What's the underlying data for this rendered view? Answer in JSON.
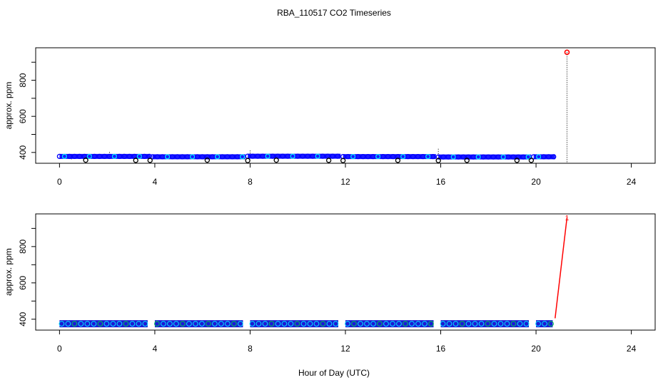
{
  "title": "RBA_110517  CO2 Timeseries",
  "xlabel": "Hour of Day (UTC)",
  "colors": {
    "main": "#0000ff",
    "alt": "#00e5ff",
    "green": "#00c853",
    "marker": "#000000",
    "outlier": "#ff0000",
    "outline": "#000000"
  },
  "chart_data": [
    {
      "type": "scatter",
      "ylabel": "approx. ppm",
      "xlim": [
        -1.0,
        25.0
      ],
      "ylim": [
        340,
        980
      ],
      "xticks": [
        0,
        4,
        8,
        12,
        16,
        20,
        24
      ],
      "yticks": [
        400,
        600,
        800
      ],
      "yticks_minor": [
        500,
        700,
        900
      ],
      "segments": [
        {
          "x_start": 0.0,
          "x_end": 3.8,
          "y": 378
        },
        {
          "x_start": 3.9,
          "x_end": 7.8,
          "y": 376
        },
        {
          "x_start": 7.9,
          "x_end": 11.8,
          "y": 379
        },
        {
          "x_start": 11.9,
          "x_end": 15.8,
          "y": 377
        },
        {
          "x_start": 15.9,
          "x_end": 19.8,
          "y": 375
        },
        {
          "x_start": 19.9,
          "x_end": 20.8,
          "y": 376
        }
      ],
      "low_markers": [
        {
          "x": 1.1,
          "y": 357
        },
        {
          "x": 3.2,
          "y": 356
        },
        {
          "x": 3.8,
          "y": 356
        },
        {
          "x": 6.2,
          "y": 357
        },
        {
          "x": 7.9,
          "y": 355
        },
        {
          "x": 9.1,
          "y": 357
        },
        {
          "x": 11.3,
          "y": 356
        },
        {
          "x": 11.9,
          "y": 355
        },
        {
          "x": 14.2,
          "y": 356
        },
        {
          "x": 15.9,
          "y": 355
        },
        {
          "x": 17.1,
          "y": 356
        },
        {
          "x": 19.2,
          "y": 356
        },
        {
          "x": 19.8,
          "y": 356
        }
      ],
      "vertical_spikes": [
        {
          "x": 0.5,
          "y_low": 360,
          "y_high": 390
        },
        {
          "x": 2.1,
          "y_low": 375,
          "y_high": 402
        },
        {
          "x": 2.7,
          "y_low": 362,
          "y_high": 392
        },
        {
          "x": 8.0,
          "y_low": 362,
          "y_high": 410
        },
        {
          "x": 15.9,
          "y_low": 362,
          "y_high": 420
        },
        {
          "x": 21.3,
          "y_low": 345,
          "y_high": 955
        }
      ],
      "outlier": {
        "x": 21.3,
        "y": 955
      }
    },
    {
      "type": "scatter",
      "ylabel": "approx. ppm",
      "xlim": [
        -1.0,
        25.0
      ],
      "ylim": [
        340,
        980
      ],
      "xticks": [
        0,
        4,
        8,
        12,
        16,
        20,
        24
      ],
      "yticks": [
        400,
        600,
        800
      ],
      "yticks_minor": [
        500,
        700,
        900
      ],
      "segments": [
        {
          "x_start": 0.0,
          "x_end": 3.7,
          "y": 375
        },
        {
          "x_start": 4.0,
          "x_end": 7.7,
          "y": 375
        },
        {
          "x_start": 8.0,
          "x_end": 11.7,
          "y": 375
        },
        {
          "x_start": 12.0,
          "x_end": 15.7,
          "y": 375
        },
        {
          "x_start": 16.0,
          "x_end": 19.7,
          "y": 375
        },
        {
          "x_start": 20.0,
          "x_end": 20.7,
          "y": 375
        }
      ],
      "outlier_line": [
        {
          "x": 20.8,
          "y": 405
        },
        {
          "x": 21.3,
          "y": 960
        }
      ],
      "outlier_label": "1"
    }
  ]
}
